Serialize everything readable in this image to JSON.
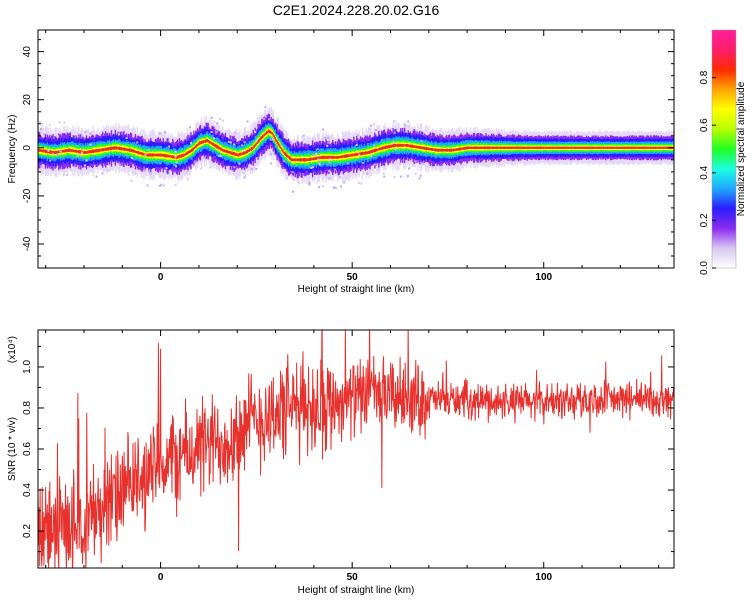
{
  "title": "C2E1.2024.228.20.02.G16",
  "colors": {
    "snr_line": "#e8302c",
    "ridge_core": "#e8302c"
  },
  "chart_data": [
    {
      "type": "heatmap",
      "xlabel": "Height of straight line (km)",
      "ylabel": "Frequency (Hz)",
      "xlim": [
        -32,
        134
      ],
      "ylim": [
        -50,
        49
      ],
      "xticks": [
        0,
        50,
        100
      ],
      "yticks": [
        -40,
        -20,
        0,
        20,
        40
      ],
      "colorbar": {
        "label": "Normalized spectral amplitude",
        "range": [
          0,
          1
        ],
        "ticks": [
          "0.0",
          "0.2",
          "0.4",
          "0.6",
          "0.8"
        ],
        "tick_values": [
          0,
          0.2,
          0.4,
          0.6,
          0.8
        ],
        "colormap": [
          "#ffffff",
          "#d9c8f2",
          "#8b2cf0",
          "#2a1cff",
          "#1ea8ff",
          "#1cffe0",
          "#22ff22",
          "#b8ff00",
          "#ffff00",
          "#ffa500",
          "#ff2a00",
          "#ff1f6a",
          "#ff1f9c"
        ]
      },
      "ridge": {
        "x": [
          -32,
          -28,
          -24,
          -20,
          -16,
          -12,
          -8,
          -4,
          0,
          4,
          6,
          8,
          10,
          12,
          14,
          16,
          18,
          20,
          22,
          24,
          26,
          28,
          29,
          30,
          32,
          34,
          38,
          42,
          46,
          50,
          54,
          58,
          61,
          64,
          68,
          72,
          76,
          80,
          84,
          90,
          100,
          110,
          120,
          134
        ],
        "y": [
          -1,
          -2,
          -1,
          -2,
          -1,
          0,
          -1,
          -3,
          -3,
          -4,
          -3,
          -1,
          2,
          3,
          1,
          -1,
          -2,
          -3,
          -2,
          0,
          4,
          7,
          6,
          3,
          -2,
          -5,
          -5,
          -4,
          -4,
          -3,
          -2,
          0,
          1,
          1,
          0,
          -1,
          -1,
          0,
          0,
          0,
          0,
          0,
          0,
          0
        ]
      }
    },
    {
      "type": "line",
      "xlabel": "Height of straight line (km)",
      "ylabel": "SNR (10 * v/v)",
      "multiplier": "(x10⁴)",
      "xlim": [
        -32,
        134
      ],
      "ylim": [
        0.02,
        1.18
      ],
      "xticks": [
        0,
        50,
        100
      ],
      "yticks": [
        0.2,
        0.4,
        0.6,
        0.8,
        1.0
      ],
      "ytick_labels": [
        "0.2",
        "0.4",
        "0.6",
        "0.8",
        "1.0"
      ],
      "envelope": {
        "x": [
          -32,
          -25,
          -20,
          -15,
          -10,
          -5,
          0,
          5,
          10,
          15,
          20,
          25,
          30,
          35,
          40,
          45,
          50,
          55,
          60,
          70,
          80,
          90,
          100,
          110,
          120,
          134
        ],
        "mean": [
          0.18,
          0.22,
          0.26,
          0.32,
          0.38,
          0.45,
          0.52,
          0.56,
          0.6,
          0.63,
          0.68,
          0.74,
          0.78,
          0.8,
          0.82,
          0.83,
          0.85,
          0.87,
          0.86,
          0.84,
          0.84,
          0.83,
          0.83,
          0.84,
          0.84,
          0.84
        ]
      }
    }
  ]
}
